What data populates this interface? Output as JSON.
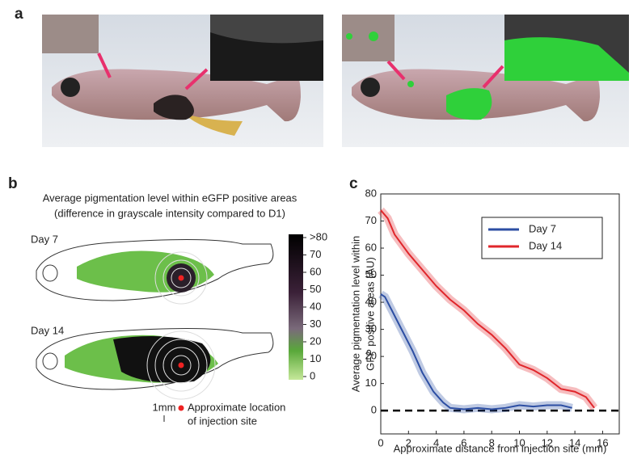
{
  "panel_labels": [
    "a",
    "b",
    "c"
  ],
  "panel_b": {
    "title_lines": [
      "Average pigmentation level within eGFP positive areas",
      "(difference in grayscale intensity compared to D1)"
    ],
    "day_labels": [
      "Day 7",
      "Day 14"
    ],
    "colorbar": {
      "ticks": [
        {
          "value": 80,
          "label": ">80"
        },
        70,
        60,
        50,
        40,
        30,
        20,
        10,
        0
      ],
      "lim": [
        0,
        80
      ]
    },
    "scale_label": "1mm",
    "legend_lines": [
      "Approximate location",
      "of injection site"
    ]
  },
  "chart_data": {
    "type": "line",
    "ylabel_lines": [
      "Average pigmentation level within",
      "GFP positive areas (AU)"
    ],
    "xlabel": "Approximate distance from injection site (mm)",
    "xlim": [
      0,
      17.2
    ],
    "ylim": [
      -8.6,
      80
    ],
    "xticks": [
      0,
      2,
      4,
      6,
      8,
      10,
      12,
      14,
      16
    ],
    "yticks": [
      0,
      10,
      20,
      30,
      40,
      50,
      60,
      70,
      80
    ],
    "hline": 0,
    "legend": "upper right",
    "series": [
      {
        "name": "Day 7",
        "color": "#2c4ea3",
        "x": [
          0,
          0.3,
          0.8,
          1.5,
          2.3,
          3,
          3.8,
          4.5,
          5,
          6,
          7,
          8,
          9,
          10,
          11,
          12,
          13,
          13.8
        ],
        "values": [
          43,
          42,
          37,
          30,
          22,
          14,
          7,
          3,
          1,
          0.5,
          1,
          0.5,
          1,
          2,
          1.5,
          2,
          2,
          1
        ]
      },
      {
        "name": "Day 14",
        "color": "#e0262b",
        "x": [
          0,
          0.5,
          1,
          2,
          3,
          4,
          5,
          6,
          7,
          8,
          9,
          10,
          11,
          12,
          13,
          14,
          14.8,
          15.4
        ],
        "values": [
          74,
          71,
          65,
          58,
          52,
          46,
          41,
          37,
          32,
          28,
          23,
          17,
          15,
          12,
          8,
          7,
          5,
          1
        ]
      }
    ]
  }
}
